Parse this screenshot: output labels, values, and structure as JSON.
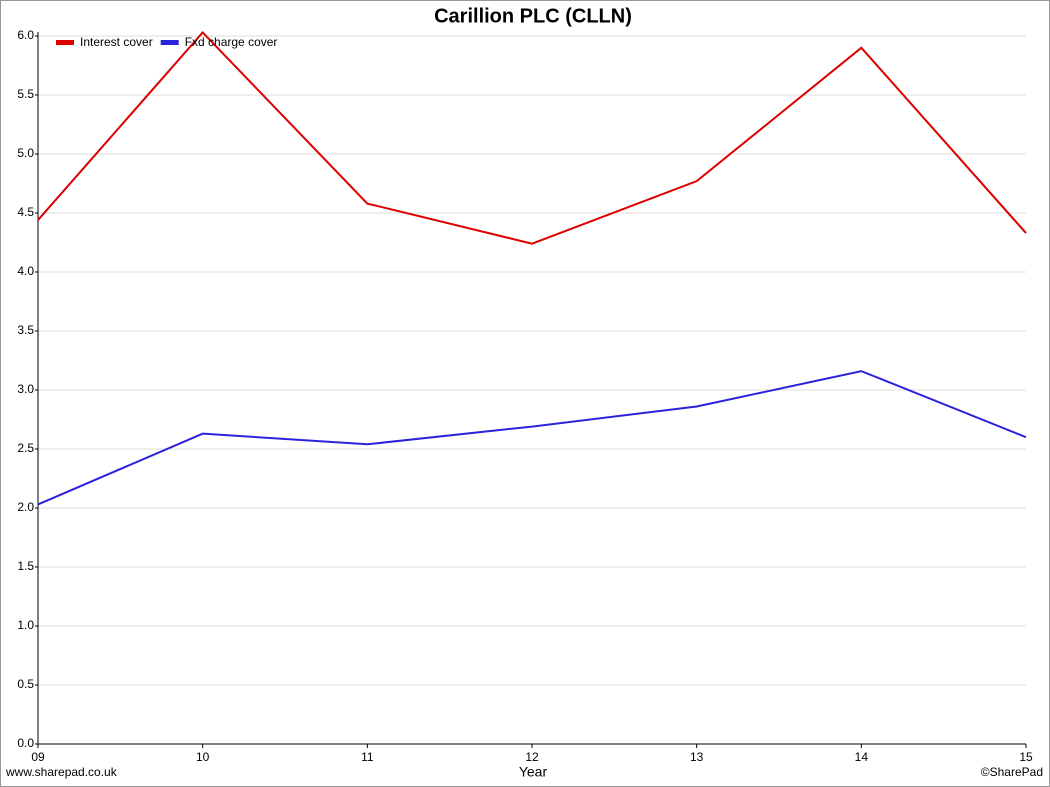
{
  "chart_data": {
    "type": "line",
    "title": "Carillion PLC (CLLN)",
    "x_label": "Year",
    "categories": [
      "09",
      "10",
      "11",
      "12",
      "13",
      "14",
      "15"
    ],
    "series": [
      {
        "name": "Interest cover",
        "color": "#dd0000",
        "values": [
          4.44,
          6.03,
          4.58,
          4.24,
          4.77,
          5.9,
          4.33
        ]
      },
      {
        "name": "Fxd charge cover",
        "color": "#2b22dd",
        "values": [
          2.03,
          2.63,
          2.54,
          2.69,
          2.86,
          3.16,
          2.6
        ]
      }
    ],
    "ylim": [
      0,
      6
    ],
    "yticks": [
      {
        "value": 0,
        "label": "0.0"
      },
      0.5,
      {
        "value": 1,
        "label": "1.0"
      },
      1.5,
      {
        "value": 2,
        "label": "2.0"
      },
      2.5,
      {
        "value": 3,
        "label": "3.0"
      },
      3.5,
      {
        "value": 4,
        "label": "4.0"
      },
      4.5,
      {
        "value": 5,
        "label": "5.0"
      },
      5.5,
      {
        "value": 6,
        "label": "6.0"
      }
    ],
    "grid": true,
    "legend": "top-left",
    "footer_left": "www.sharepad.co.uk",
    "footer_right": "©SharePad"
  }
}
